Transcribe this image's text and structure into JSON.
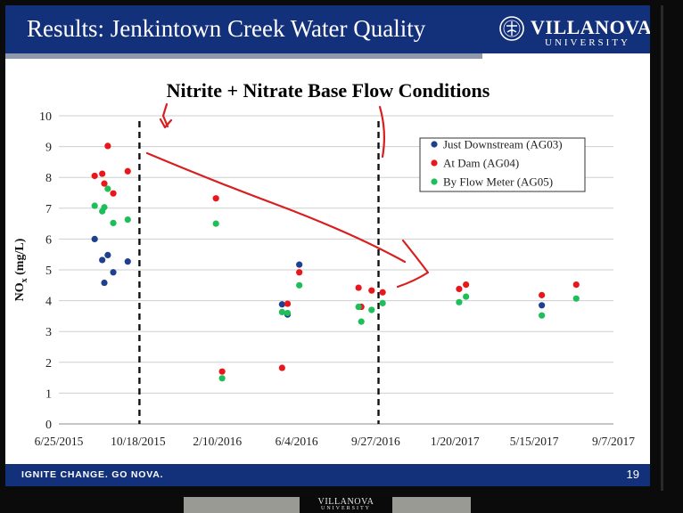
{
  "slide": {
    "title": "Results: Jenkintown Creek Water Quality",
    "logo": {
      "name": "VILLANOVA",
      "subtitle": "UNIVERSITY"
    },
    "footer": {
      "tagline": "IGNITE CHANGE. GO NOVA.",
      "page_number": "19"
    }
  },
  "thumbnail": {
    "name": "VILLANOVA",
    "subtitle": "UNIVERSITY"
  },
  "colors": {
    "header_bg": "#13307a",
    "series_ag03": "#1f3f8f",
    "series_ag04": "#e8171b",
    "series_ag05": "#1ebe5a",
    "annotation_ink": "#d81f1f"
  },
  "chart_data": {
    "type": "scatter",
    "title": "Nitrite + Nitrate Base Flow Conditions",
    "ylabel": "NO",
    "ylabel_subscript": "x",
    "ylabel_unit": "(mg/L)",
    "xlabel": "",
    "x_is_date": true,
    "xlim": [
      "2015-06-25",
      "2017-09-07"
    ],
    "x_ticks": [
      "6/25/2015",
      "10/18/2015",
      "2/10/2016",
      "6/4/2016",
      "9/27/2016",
      "1/20/2017",
      "5/15/2017",
      "9/7/2017"
    ],
    "ylim": [
      0,
      10
    ],
    "y_ticks": [
      0,
      1,
      2,
      3,
      4,
      5,
      6,
      7,
      8,
      9,
      10
    ],
    "grid": "horizontal",
    "legend_position": "top-right",
    "vertical_markers": [
      "2015-10-20",
      "2016-10-01"
    ],
    "series": [
      {
        "name": "Just Downstream (AG03)",
        "points": [
          [
            "2015-08-16",
            6.0
          ],
          [
            "2015-08-27",
            5.32
          ],
          [
            "2015-08-30",
            4.58
          ],
          [
            "2015-09-04",
            5.48
          ],
          [
            "2015-09-12",
            4.92
          ],
          [
            "2015-10-03",
            5.27
          ],
          [
            "2016-05-14",
            3.88
          ],
          [
            "2016-05-22",
            3.55
          ],
          [
            "2016-06-08",
            5.17
          ],
          [
            "2017-05-26",
            3.85
          ]
        ]
      },
      {
        "name": "At Dam (AG04)",
        "points": [
          [
            "2015-08-16",
            8.05
          ],
          [
            "2015-08-27",
            8.12
          ],
          [
            "2015-08-30",
            7.8
          ],
          [
            "2015-09-04",
            9.02
          ],
          [
            "2015-09-12",
            7.48
          ],
          [
            "2015-10-03",
            8.2
          ],
          [
            "2016-02-08",
            7.32
          ],
          [
            "2016-02-17",
            1.7
          ],
          [
            "2016-05-14",
            1.82
          ],
          [
            "2016-05-22",
            3.9
          ],
          [
            "2016-06-08",
            4.92
          ],
          [
            "2016-09-02",
            4.42
          ],
          [
            "2016-09-06",
            3.8
          ],
          [
            "2016-09-21",
            4.33
          ],
          [
            "2016-10-07",
            4.27
          ],
          [
            "2017-01-26",
            4.38
          ],
          [
            "2017-02-05",
            4.52
          ],
          [
            "2017-05-26",
            4.18
          ],
          [
            "2017-07-15",
            4.52
          ]
        ]
      },
      {
        "name": "By Flow Meter (AG05)",
        "points": [
          [
            "2015-08-16",
            7.08
          ],
          [
            "2015-08-27",
            6.9
          ],
          [
            "2015-08-30",
            7.03
          ],
          [
            "2015-09-04",
            7.63
          ],
          [
            "2015-09-12",
            6.52
          ],
          [
            "2015-10-03",
            6.63
          ],
          [
            "2016-02-08",
            6.5
          ],
          [
            "2016-02-17",
            1.48
          ],
          [
            "2016-05-14",
            3.63
          ],
          [
            "2016-05-22",
            3.6
          ],
          [
            "2016-06-08",
            4.5
          ],
          [
            "2016-09-02",
            3.8
          ],
          [
            "2016-09-06",
            3.32
          ],
          [
            "2016-09-21",
            3.7
          ],
          [
            "2016-10-07",
            3.92
          ],
          [
            "2017-01-26",
            3.95
          ],
          [
            "2017-02-05",
            4.13
          ],
          [
            "2017-05-26",
            3.52
          ],
          [
            "2017-07-15",
            4.07
          ]
        ]
      }
    ]
  }
}
